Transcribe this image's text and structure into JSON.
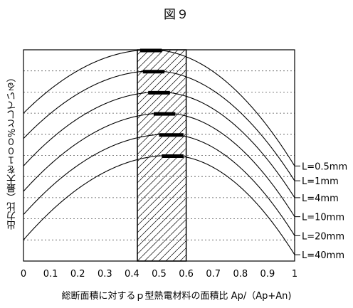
{
  "figure_title": "図９",
  "chart_data": {
    "type": "line",
    "xlabel": "総断面積に対するｐ型熱電材料の面積比 Ap/（Ap+An)",
    "ylabel": "出力比（最大を１００%としている）",
    "xlim": [
      0,
      1
    ],
    "ylim": [
      0,
      100
    ],
    "x_ticks": [
      "0",
      "0.1",
      "0.2",
      "0.3",
      "0.4",
      "0.5",
      "0.6",
      "0.7",
      "0.8",
      "0.9",
      "1"
    ],
    "grid": "horizontal-dotted",
    "hatched_region": [
      0.42,
      0.6
    ],
    "series": [
      {
        "name": "L=0.5mm",
        "peak_x": 0.47,
        "peak_y": 100,
        "edge_y": [
          70,
          45
        ],
        "optimum_range": [
          0.43,
          0.51
        ]
      },
      {
        "name": "L=1mm",
        "peak_x": 0.48,
        "peak_y": 90,
        "edge_y": [
          58,
          38
        ],
        "optimum_range": [
          0.44,
          0.52
        ]
      },
      {
        "name": "L=4mm",
        "peak_x": 0.5,
        "peak_y": 80,
        "edge_y": [
          45,
          30
        ],
        "optimum_range": [
          0.46,
          0.54
        ]
      },
      {
        "name": "L=10mm",
        "peak_x": 0.52,
        "peak_y": 70,
        "edge_y": [
          33,
          21
        ],
        "optimum_range": [
          0.48,
          0.56
        ]
      },
      {
        "name": "L=20mm",
        "peak_x": 0.53,
        "peak_y": 60,
        "edge_y": [
          22,
          12
        ],
        "optimum_range": [
          0.5,
          0.59
        ]
      },
      {
        "name": "L=40mm",
        "peak_x": 0.54,
        "peak_y": 50,
        "edge_y": [
          10,
          3
        ],
        "optimum_range": [
          0.51,
          0.59
        ]
      }
    ]
  }
}
